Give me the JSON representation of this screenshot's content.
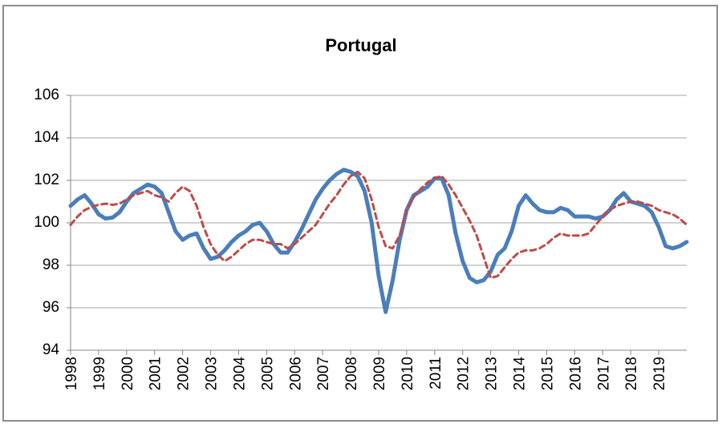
{
  "chart_data": {
    "type": "line",
    "title": "Portugal",
    "x": [
      1998,
      1998.25,
      1998.5,
      1998.75,
      1999,
      1999.25,
      1999.5,
      1999.75,
      2000,
      2000.25,
      2000.5,
      2000.75,
      2001,
      2001.25,
      2001.5,
      2001.75,
      2002,
      2002.25,
      2002.5,
      2002.75,
      2003,
      2003.25,
      2003.5,
      2003.75,
      2004,
      2004.25,
      2004.5,
      2004.75,
      2005,
      2005.25,
      2005.5,
      2005.75,
      2006,
      2006.25,
      2006.5,
      2006.75,
      2007,
      2007.25,
      2007.5,
      2007.75,
      2008,
      2008.25,
      2008.5,
      2008.75,
      2009,
      2009.25,
      2009.5,
      2009.75,
      2010,
      2010.25,
      2010.5,
      2010.75,
      2011,
      2011.25,
      2011.5,
      2011.75,
      2012,
      2012.25,
      2012.5,
      2012.75,
      2013,
      2013.25,
      2013.5,
      2013.75,
      2014,
      2014.25,
      2014.5,
      2014.75,
      2015,
      2015.25,
      2015.5,
      2015.75,
      2016,
      2016.25,
      2016.5,
      2016.75,
      2017,
      2017.25,
      2017.5,
      2017.75,
      2018,
      2018.25,
      2018.5,
      2018.75,
      2019,
      2019.25,
      2019.5,
      2019.75,
      2020
    ],
    "series": [
      {
        "color": "#4a7ebb",
        "line_style": "solid",
        "values": [
          100.8,
          101.1,
          101.3,
          100.9,
          100.4,
          100.2,
          100.25,
          100.5,
          101.0,
          101.4,
          101.6,
          101.8,
          101.7,
          101.4,
          100.5,
          99.6,
          99.2,
          99.4,
          99.5,
          98.8,
          98.3,
          98.4,
          98.7,
          99.1,
          99.4,
          99.6,
          99.9,
          100.0,
          99.6,
          99.0,
          98.6,
          98.6,
          99.1,
          99.7,
          100.4,
          101.1,
          101.6,
          102.0,
          102.3,
          102.5,
          102.4,
          102.2,
          101.5,
          100.0,
          97.5,
          95.8,
          97.3,
          99.2,
          100.6,
          101.3,
          101.5,
          101.7,
          102.1,
          102.1,
          101.3,
          99.5,
          98.2,
          97.4,
          97.2,
          97.3,
          97.7,
          98.5,
          98.8,
          99.6,
          100.8,
          101.3,
          100.9,
          100.6,
          100.5,
          100.5,
          100.7,
          100.6,
          100.3,
          100.3,
          100.3,
          100.2,
          100.3,
          100.6,
          101.1,
          101.4,
          101.0,
          100.9,
          100.8,
          100.5,
          99.8,
          98.9,
          98.8,
          98.9,
          99.1
        ]
      },
      {
        "color": "#be4b48",
        "line_style": "dashed",
        "values": [
          99.9,
          100.3,
          100.6,
          100.75,
          100.85,
          100.9,
          100.85,
          100.9,
          101.1,
          101.3,
          101.4,
          101.5,
          101.3,
          101.2,
          101.0,
          101.4,
          101.7,
          101.5,
          100.8,
          99.8,
          99.0,
          98.5,
          98.2,
          98.4,
          98.7,
          99.0,
          99.2,
          99.2,
          99.1,
          99.0,
          99.0,
          98.8,
          99.0,
          99.3,
          99.6,
          99.9,
          100.4,
          100.9,
          101.3,
          101.8,
          102.2,
          102.4,
          102.1,
          101.1,
          99.8,
          98.9,
          98.8,
          99.4,
          100.6,
          101.2,
          101.6,
          101.9,
          102.1,
          102.2,
          101.8,
          101.3,
          100.7,
          100.1,
          99.4,
          98.4,
          97.4,
          97.5,
          97.9,
          98.3,
          98.6,
          98.7,
          98.7,
          98.8,
          99.0,
          99.3,
          99.5,
          99.4,
          99.4,
          99.4,
          99.5,
          99.9,
          100.3,
          100.6,
          100.8,
          100.9,
          101.0,
          101.0,
          100.9,
          100.8,
          100.6,
          100.5,
          100.4,
          100.2,
          99.9
        ]
      }
    ],
    "xlim": [
      1998,
      2020
    ],
    "xticks": [
      1998,
      1999,
      2000,
      2001,
      2002,
      2003,
      2004,
      2005,
      2006,
      2007,
      2008,
      2009,
      2010,
      2011,
      2012,
      2013,
      2014,
      2015,
      2016,
      2017,
      2018,
      2019
    ],
    "ylim": [
      94,
      106
    ],
    "yticks": [
      94,
      96,
      98,
      100,
      102,
      104,
      106
    ],
    "grid": true
  }
}
